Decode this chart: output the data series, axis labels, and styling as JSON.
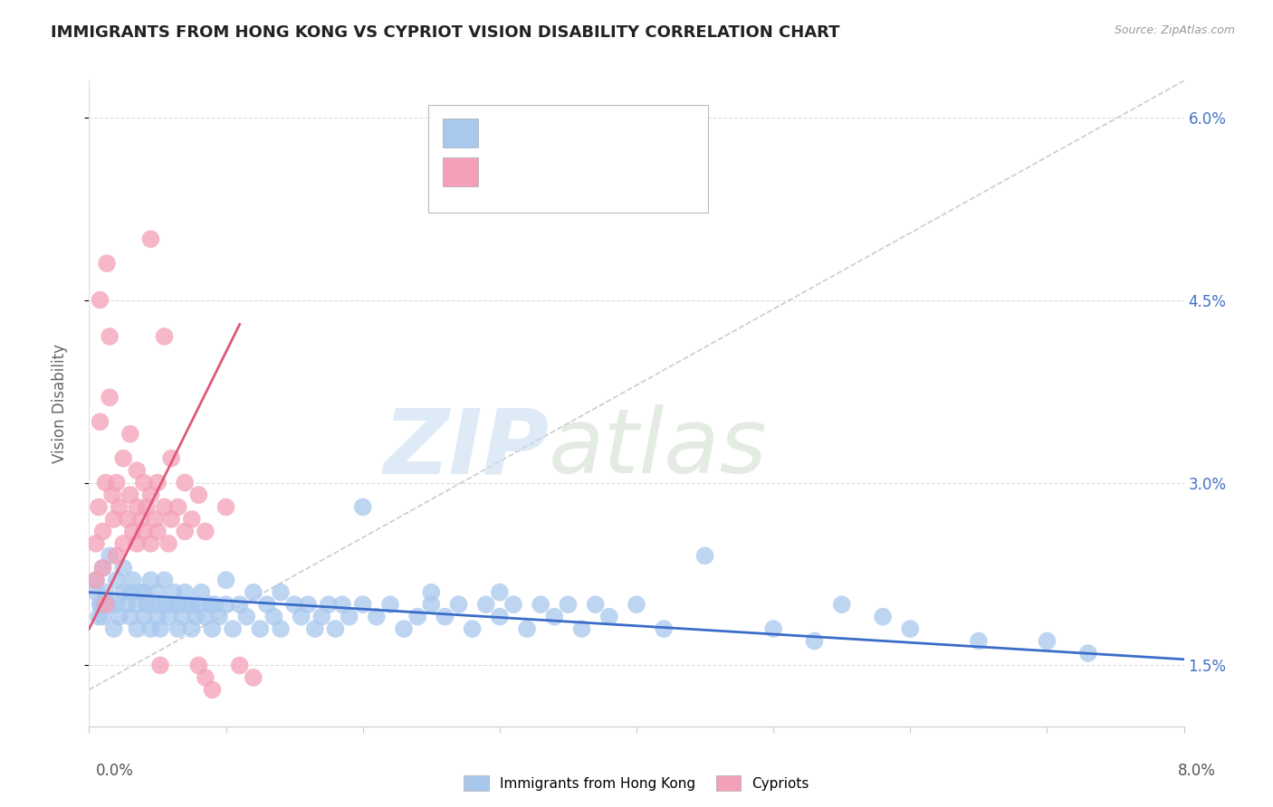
{
  "title": "IMMIGRANTS FROM HONG KONG VS CYPRIOT VISION DISABILITY CORRELATION CHART",
  "source": "Source: ZipAtlas.com",
  "ylabel": "Vision Disability",
  "right_ytick_labels": [
    "1.5%",
    "3.0%",
    "4.5%",
    "6.0%"
  ],
  "right_ytick_vals": [
    1.5,
    3.0,
    4.5,
    6.0
  ],
  "xmin": 0.0,
  "xmax": 8.0,
  "ymin": 1.0,
  "ymax": 6.3,
  "blue_color": "#A8C8EE",
  "pink_color": "#F4A0B8",
  "blue_line_color": "#3B6DC8",
  "pink_line_color": "#E05878",
  "gray_dash_color": "#CCCCCC",
  "blue_dots": [
    [
      0.05,
      2.2
    ],
    [
      0.08,
      2.0
    ],
    [
      0.1,
      1.9
    ],
    [
      0.1,
      2.3
    ],
    [
      0.12,
      2.1
    ],
    [
      0.15,
      2.0
    ],
    [
      0.15,
      2.4
    ],
    [
      0.18,
      1.8
    ],
    [
      0.2,
      2.0
    ],
    [
      0.2,
      2.2
    ],
    [
      0.22,
      1.9
    ],
    [
      0.25,
      2.1
    ],
    [
      0.25,
      2.3
    ],
    [
      0.28,
      2.0
    ],
    [
      0.3,
      1.9
    ],
    [
      0.3,
      2.1
    ],
    [
      0.32,
      2.2
    ],
    [
      0.35,
      1.8
    ],
    [
      0.35,
      2.0
    ],
    [
      0.38,
      2.1
    ],
    [
      0.4,
      1.9
    ],
    [
      0.4,
      2.1
    ],
    [
      0.42,
      2.0
    ],
    [
      0.45,
      1.8
    ],
    [
      0.45,
      2.2
    ],
    [
      0.48,
      2.0
    ],
    [
      0.5,
      1.9
    ],
    [
      0.5,
      2.1
    ],
    [
      0.52,
      1.8
    ],
    [
      0.55,
      2.0
    ],
    [
      0.55,
      2.2
    ],
    [
      0.58,
      1.9
    ],
    [
      0.6,
      2.0
    ],
    [
      0.62,
      2.1
    ],
    [
      0.65,
      1.8
    ],
    [
      0.65,
      2.0
    ],
    [
      0.68,
      1.9
    ],
    [
      0.7,
      2.1
    ],
    [
      0.72,
      2.0
    ],
    [
      0.75,
      1.8
    ],
    [
      0.75,
      2.0
    ],
    [
      0.78,
      1.9
    ],
    [
      0.8,
      2.0
    ],
    [
      0.82,
      2.1
    ],
    [
      0.85,
      1.9
    ],
    [
      0.88,
      2.0
    ],
    [
      0.9,
      1.8
    ],
    [
      0.92,
      2.0
    ],
    [
      0.95,
      1.9
    ],
    [
      1.0,
      2.0
    ],
    [
      1.0,
      2.2
    ],
    [
      1.05,
      1.8
    ],
    [
      1.1,
      2.0
    ],
    [
      1.15,
      1.9
    ],
    [
      1.2,
      2.1
    ],
    [
      1.25,
      1.8
    ],
    [
      1.3,
      2.0
    ],
    [
      1.35,
      1.9
    ],
    [
      1.4,
      1.8
    ],
    [
      1.4,
      2.1
    ],
    [
      1.5,
      2.0
    ],
    [
      1.55,
      1.9
    ],
    [
      1.6,
      2.0
    ],
    [
      1.65,
      1.8
    ],
    [
      1.7,
      1.9
    ],
    [
      1.75,
      2.0
    ],
    [
      1.8,
      1.8
    ],
    [
      1.85,
      2.0
    ],
    [
      1.9,
      1.9
    ],
    [
      2.0,
      2.0
    ],
    [
      2.0,
      2.8
    ],
    [
      2.1,
      1.9
    ],
    [
      2.2,
      2.0
    ],
    [
      2.3,
      1.8
    ],
    [
      2.4,
      1.9
    ],
    [
      2.5,
      2.0
    ],
    [
      2.5,
      2.1
    ],
    [
      2.6,
      1.9
    ],
    [
      2.7,
      2.0
    ],
    [
      2.8,
      1.8
    ],
    [
      2.9,
      2.0
    ],
    [
      3.0,
      1.9
    ],
    [
      3.0,
      2.1
    ],
    [
      3.1,
      2.0
    ],
    [
      3.2,
      1.8
    ],
    [
      3.3,
      2.0
    ],
    [
      3.4,
      1.9
    ],
    [
      3.5,
      2.0
    ],
    [
      3.6,
      1.8
    ],
    [
      3.7,
      2.0
    ],
    [
      3.8,
      1.9
    ],
    [
      4.0,
      2.0
    ],
    [
      4.2,
      1.8
    ],
    [
      4.5,
      2.4
    ],
    [
      5.0,
      1.8
    ],
    [
      5.3,
      1.7
    ],
    [
      5.5,
      2.0
    ],
    [
      5.8,
      1.9
    ],
    [
      6.0,
      1.8
    ],
    [
      6.5,
      1.7
    ],
    [
      7.0,
      1.7
    ],
    [
      7.3,
      1.6
    ],
    [
      0.05,
      2.1
    ],
    [
      0.07,
      1.9
    ],
    [
      0.09,
      2.0
    ]
  ],
  "pink_dots": [
    [
      0.05,
      2.2
    ],
    [
      0.05,
      2.5
    ],
    [
      0.07,
      2.8
    ],
    [
      0.08,
      3.5
    ],
    [
      0.1,
      2.3
    ],
    [
      0.1,
      2.6
    ],
    [
      0.12,
      2.0
    ],
    [
      0.12,
      3.0
    ],
    [
      0.13,
      4.8
    ],
    [
      0.15,
      3.7
    ],
    [
      0.15,
      4.2
    ],
    [
      0.17,
      2.9
    ],
    [
      0.18,
      2.7
    ],
    [
      0.2,
      2.4
    ],
    [
      0.2,
      3.0
    ],
    [
      0.22,
      2.8
    ],
    [
      0.25,
      2.5
    ],
    [
      0.25,
      3.2
    ],
    [
      0.28,
      2.7
    ],
    [
      0.3,
      2.9
    ],
    [
      0.3,
      3.4
    ],
    [
      0.32,
      2.6
    ],
    [
      0.35,
      2.5
    ],
    [
      0.35,
      2.8
    ],
    [
      0.35,
      3.1
    ],
    [
      0.38,
      2.7
    ],
    [
      0.4,
      2.6
    ],
    [
      0.4,
      3.0
    ],
    [
      0.42,
      2.8
    ],
    [
      0.45,
      2.5
    ],
    [
      0.45,
      2.9
    ],
    [
      0.45,
      5.0
    ],
    [
      0.48,
      2.7
    ],
    [
      0.5,
      2.6
    ],
    [
      0.5,
      3.0
    ],
    [
      0.52,
      1.5
    ],
    [
      0.55,
      2.8
    ],
    [
      0.55,
      4.2
    ],
    [
      0.58,
      2.5
    ],
    [
      0.6,
      2.7
    ],
    [
      0.6,
      3.2
    ],
    [
      0.65,
      2.8
    ],
    [
      0.7,
      2.6
    ],
    [
      0.7,
      3.0
    ],
    [
      0.75,
      2.7
    ],
    [
      0.8,
      1.5
    ],
    [
      0.8,
      2.9
    ],
    [
      0.85,
      1.4
    ],
    [
      0.85,
      2.6
    ],
    [
      0.9,
      1.3
    ],
    [
      1.0,
      2.8
    ],
    [
      1.1,
      1.5
    ],
    [
      1.2,
      1.4
    ],
    [
      0.08,
      4.5
    ]
  ]
}
